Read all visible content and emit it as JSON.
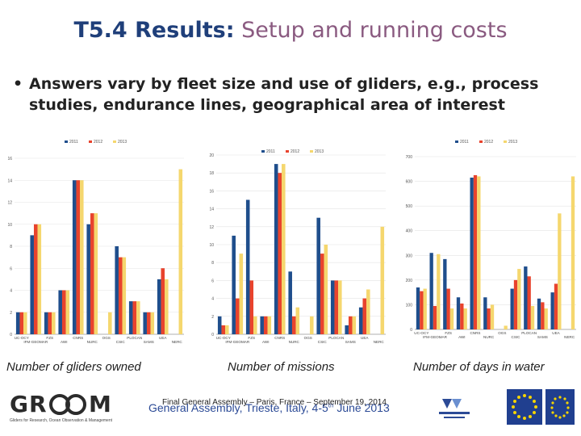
{
  "slide": {
    "title_bold": "T5.4 Results:",
    "title_light": "Setup and running costs",
    "bullet": "Answers vary by fleet size and use of gliders, e.g., process studies, endurance lines, geographical area of interest",
    "footer_back": "General Assembly, Trieste, Italy, 4-5",
    "footer_back_sup": "th",
    "footer_back_end": " June 2013",
    "footer_front": "Final General Assembly – Paris, France – September 19, 2014",
    "logo_gr": "GR",
    "logo_m": "M",
    "logo_sub": "Gliders for Research, Ocean Observation & Management"
  },
  "colors": {
    "title": "#1f3f7a",
    "s2011": "#1f4e8c",
    "s2012": "#e8432d",
    "s2013": "#f5d76e"
  },
  "chart_data": [
    {
      "type": "bar",
      "caption": "Number of gliders owned",
      "series_names": [
        "2011",
        "2012",
        "2013"
      ],
      "categories": [
        "UC-OCY",
        "IFM-GEOMAR",
        "FZS",
        "AWI",
        "CNRS",
        "NURC",
        "OGS",
        "CSIC",
        "PLOCAN",
        "SAMS",
        "UEA",
        "NERC"
      ],
      "tick_categories": [
        "UC-OCY",
        "IFM-GEOMAR",
        "FZS",
        "AWI",
        "CNRS",
        "NURC",
        "OGS",
        "CSIC",
        "PLOCAN",
        "SAMS",
        "UEA",
        "NERC"
      ],
      "ylim": [
        0,
        16
      ],
      "yticks": [
        0,
        2,
        4,
        6,
        8,
        10,
        12,
        14,
        16
      ],
      "series": [
        {
          "values": [
            2,
            9,
            2,
            4,
            14,
            10,
            0,
            8,
            3,
            2,
            5,
            0
          ]
        },
        {
          "values": [
            2,
            10,
            2,
            4,
            14,
            11,
            0,
            7,
            3,
            2,
            6,
            0
          ]
        },
        {
          "values": [
            2,
            10,
            2,
            4,
            14,
            11,
            2,
            7,
            3,
            2,
            5,
            15
          ]
        }
      ]
    },
    {
      "type": "bar",
      "caption": "Number of missions",
      "series_names": [
        "2011",
        "2012",
        "2013"
      ],
      "categories": [
        "UC-OCY",
        "IFM-GEOMAR",
        "FZS",
        "AWI",
        "CNRS",
        "NURC",
        "OGS",
        "CSIC",
        "PLOCAN",
        "SAMS",
        "UEA",
        "NERC"
      ],
      "tick_categories": [
        "UC-OCY",
        "IFM-GEOMAR",
        "FZS",
        "AWI",
        "CNRS",
        "NURC",
        "OGS",
        "CSIC",
        "PLOCAN",
        "SAMS",
        "UEA",
        "NERC"
      ],
      "ylim": [
        0,
        20
      ],
      "yticks": [
        0,
        2,
        4,
        6,
        8,
        10,
        12,
        14,
        16,
        18,
        20
      ],
      "series": [
        {
          "values": [
            2,
            11,
            15,
            2,
            19,
            7,
            0,
            13,
            6,
            1,
            3,
            0
          ]
        },
        {
          "values": [
            1,
            4,
            6,
            2,
            18,
            2,
            0,
            9,
            6,
            2,
            4,
            0
          ]
        },
        {
          "values": [
            1,
            9,
            2,
            2,
            19,
            3,
            2,
            10,
            6,
            2,
            5,
            12
          ]
        }
      ]
    },
    {
      "type": "bar",
      "caption": "Number of days in water",
      "series_names": [
        "2011",
        "2012",
        "2013"
      ],
      "categories": [
        "UC-OCY",
        "IFM-GEOMAR",
        "FZS",
        "AWI",
        "CNRS",
        "NURC",
        "OGS",
        "CSIC",
        "PLOCAN",
        "SAMS",
        "UEA",
        "NERC"
      ],
      "tick_categories": [
        "UC-OCY",
        "IFM-GEOMAR",
        "FZS",
        "AWI",
        "CNRS",
        "NURC",
        "OGS",
        "CSIC",
        "PLOCAN",
        "SAMS",
        "UEA",
        "NERC"
      ],
      "ylim": [
        0,
        700
      ],
      "yticks": [
        0,
        100,
        200,
        300,
        400,
        500,
        600,
        700
      ],
      "series": [
        {
          "values": [
            170,
            310,
            285,
            130,
            615,
            130,
            0,
            165,
            255,
            125,
            150,
            0
          ]
        },
        {
          "values": [
            155,
            95,
            165,
            105,
            625,
            85,
            0,
            200,
            215,
            110,
            185,
            0
          ]
        },
        {
          "values": [
            165,
            305,
            85,
            85,
            620,
            100,
            15,
            245,
            95,
            85,
            470,
            620
          ]
        }
      ]
    }
  ]
}
